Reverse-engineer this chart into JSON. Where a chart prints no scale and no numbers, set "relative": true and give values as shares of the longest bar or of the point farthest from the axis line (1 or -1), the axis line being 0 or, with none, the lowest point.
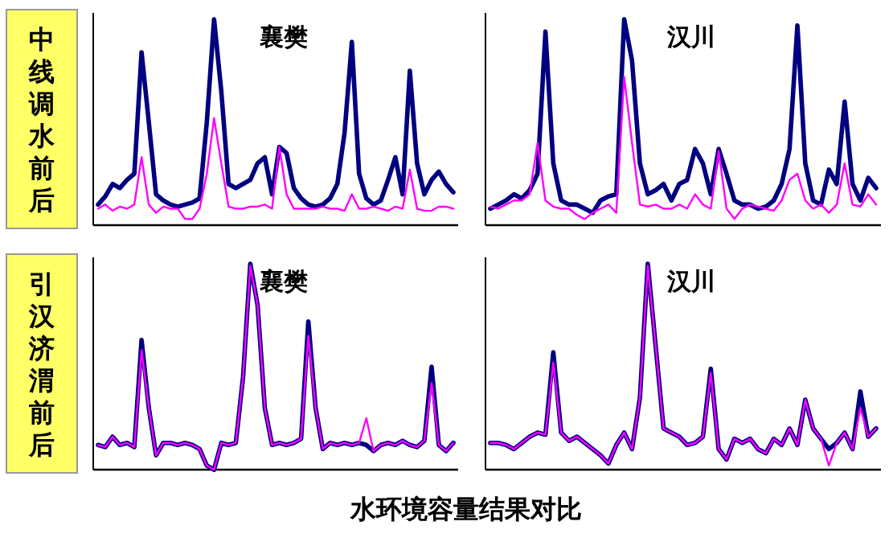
{
  "chart_data": [
    {
      "type": "line",
      "title": "襄樊",
      "relative": true,
      "legend": false,
      "grid": false,
      "annotations": [
        "中线调水前后"
      ],
      "categories": [
        null,
        null,
        null,
        null,
        null,
        null,
        null,
        null,
        null,
        null,
        null,
        null,
        null,
        null,
        null,
        null,
        null,
        null,
        null,
        null,
        null,
        null,
        null,
        null,
        null,
        null,
        null,
        null,
        null,
        null,
        null,
        null,
        null,
        null,
        null,
        null,
        null,
        null,
        null,
        null,
        null,
        null,
        null,
        null,
        null,
        null,
        null,
        null,
        null,
        null
      ],
      "series": [
        {
          "color": "#000080",
          "values": [
            0.1,
            0.14,
            0.2,
            0.18,
            0.22,
            0.25,
            0.84,
            0.5,
            0.15,
            0.12,
            0.1,
            0.09,
            0.1,
            0.11,
            0.13,
            0.5,
            1.0,
            0.65,
            0.2,
            0.18,
            0.2,
            0.22,
            0.3,
            0.33,
            0.15,
            0.38,
            0.35,
            0.18,
            0.13,
            0.1,
            0.09,
            0.1,
            0.13,
            0.2,
            0.45,
            0.89,
            0.25,
            0.13,
            0.1,
            0.12,
            0.22,
            0.33,
            0.15,
            0.75,
            0.3,
            0.15,
            0.22,
            0.26,
            0.2,
            0.16
          ]
        },
        {
          "color": "#ff00ff",
          "values": [
            0.08,
            0.1,
            0.07,
            0.09,
            0.08,
            0.1,
            0.33,
            0.1,
            0.06,
            0.09,
            0.08,
            0.08,
            0.03,
            0.03,
            0.08,
            0.25,
            0.52,
            0.3,
            0.09,
            0.08,
            0.08,
            0.09,
            0.09,
            0.1,
            0.08,
            0.38,
            0.15,
            0.08,
            0.08,
            0.08,
            0.08,
            0.09,
            0.08,
            0.08,
            0.07,
            0.15,
            0.08,
            0.08,
            0.09,
            0.08,
            0.07,
            0.09,
            0.08,
            0.27,
            0.08,
            0.07,
            0.07,
            0.09,
            0.09,
            0.08
          ]
        }
      ]
    },
    {
      "type": "line",
      "title": "汉川",
      "relative": true,
      "legend": false,
      "grid": false,
      "categories": [
        null,
        null,
        null,
        null,
        null,
        null,
        null,
        null,
        null,
        null,
        null,
        null,
        null,
        null,
        null,
        null,
        null,
        null,
        null,
        null,
        null,
        null,
        null,
        null,
        null,
        null,
        null,
        null,
        null,
        null,
        null,
        null,
        null,
        null,
        null,
        null,
        null,
        null,
        null,
        null,
        null,
        null,
        null,
        null,
        null,
        null,
        null,
        null,
        null,
        null
      ],
      "series": [
        {
          "color": "#000080",
          "values": [
            0.08,
            0.1,
            0.12,
            0.15,
            0.13,
            0.17,
            0.25,
            0.94,
            0.3,
            0.12,
            0.1,
            0.1,
            0.08,
            0.06,
            0.12,
            0.14,
            0.15,
            1.0,
            0.8,
            0.3,
            0.15,
            0.17,
            0.2,
            0.12,
            0.2,
            0.22,
            0.37,
            0.3,
            0.15,
            0.37,
            0.25,
            0.12,
            0.1,
            0.1,
            0.08,
            0.09,
            0.12,
            0.2,
            0.37,
            0.97,
            0.3,
            0.12,
            0.1,
            0.27,
            0.2,
            0.6,
            0.2,
            0.12,
            0.23,
            0.18
          ]
        },
        {
          "color": "#ff00ff",
          "values": [
            0.09,
            0.08,
            0.1,
            0.12,
            0.12,
            0.15,
            0.4,
            0.12,
            0.09,
            0.08,
            0.08,
            0.05,
            0.03,
            0.06,
            0.08,
            0.1,
            0.06,
            0.72,
            0.4,
            0.1,
            0.09,
            0.1,
            0.08,
            0.08,
            0.1,
            0.08,
            0.15,
            0.1,
            0.08,
            0.36,
            0.08,
            0.03,
            0.08,
            0.1,
            0.09,
            0.08,
            0.07,
            0.12,
            0.22,
            0.25,
            0.12,
            0.08,
            0.1,
            0.06,
            0.1,
            0.3,
            0.1,
            0.09,
            0.15,
            0.1
          ]
        }
      ]
    },
    {
      "type": "line",
      "title": "襄樊",
      "relative": true,
      "legend": false,
      "grid": false,
      "annotations": [
        "引汉济渭前后",
        "水环境容量结果对比"
      ],
      "categories": [
        null,
        null,
        null,
        null,
        null,
        null,
        null,
        null,
        null,
        null,
        null,
        null,
        null,
        null,
        null,
        null,
        null,
        null,
        null,
        null,
        null,
        null,
        null,
        null,
        null,
        null,
        null,
        null,
        null,
        null,
        null,
        null,
        null,
        null,
        null,
        null,
        null,
        null,
        null,
        null,
        null,
        null,
        null,
        null,
        null,
        null,
        null,
        null,
        null,
        null
      ],
      "series": [
        {
          "color": "#000080",
          "values": [
            0.12,
            0.11,
            0.16,
            0.12,
            0.13,
            0.11,
            0.63,
            0.3,
            0.07,
            0.13,
            0.13,
            0.12,
            0.13,
            0.12,
            0.1,
            0.02,
            0.0,
            0.13,
            0.12,
            0.13,
            0.45,
            1.0,
            0.8,
            0.3,
            0.12,
            0.13,
            0.12,
            0.13,
            0.15,
            0.72,
            0.3,
            0.1,
            0.13,
            0.12,
            0.13,
            0.12,
            0.13,
            0.12,
            0.09,
            0.12,
            0.13,
            0.12,
            0.14,
            0.12,
            0.11,
            0.14,
            0.5,
            0.12,
            0.09,
            0.13
          ]
        },
        {
          "color": "#ff00ff",
          "values": [
            0.12,
            0.11,
            0.16,
            0.12,
            0.13,
            0.11,
            0.58,
            0.3,
            0.07,
            0.13,
            0.13,
            0.12,
            0.13,
            0.12,
            0.1,
            0.02,
            0.0,
            0.13,
            0.12,
            0.13,
            0.45,
            0.99,
            0.8,
            0.3,
            0.12,
            0.13,
            0.12,
            0.13,
            0.15,
            0.65,
            0.3,
            0.1,
            0.13,
            0.12,
            0.13,
            0.12,
            0.13,
            0.25,
            0.09,
            0.12,
            0.13,
            0.12,
            0.14,
            0.12,
            0.11,
            0.14,
            0.42,
            0.12,
            0.09,
            0.13
          ]
        }
      ]
    },
    {
      "type": "line",
      "title": "汉川",
      "relative": true,
      "legend": false,
      "grid": false,
      "categories": [
        null,
        null,
        null,
        null,
        null,
        null,
        null,
        null,
        null,
        null,
        null,
        null,
        null,
        null,
        null,
        null,
        null,
        null,
        null,
        null,
        null,
        null,
        null,
        null,
        null,
        null,
        null,
        null,
        null,
        null,
        null,
        null,
        null,
        null,
        null,
        null,
        null,
        null,
        null,
        null,
        null,
        null,
        null,
        null,
        null,
        null,
        null,
        null,
        null,
        null
      ],
      "series": [
        {
          "color": "#000080",
          "values": [
            0.13,
            0.13,
            0.12,
            0.1,
            0.13,
            0.16,
            0.18,
            0.17,
            0.57,
            0.18,
            0.14,
            0.16,
            0.13,
            0.1,
            0.07,
            0.03,
            0.12,
            0.18,
            0.1,
            0.35,
            1.0,
            0.6,
            0.2,
            0.18,
            0.16,
            0.12,
            0.13,
            0.16,
            0.49,
            0.1,
            0.05,
            0.15,
            0.13,
            0.15,
            0.1,
            0.08,
            0.15,
            0.12,
            0.2,
            0.12,
            0.34,
            0.2,
            0.15,
            0.1,
            0.13,
            0.18,
            0.1,
            0.38,
            0.16,
            0.2
          ]
        },
        {
          "color": "#ff00ff",
          "values": [
            0.13,
            0.13,
            0.12,
            0.1,
            0.13,
            0.16,
            0.18,
            0.17,
            0.52,
            0.18,
            0.14,
            0.16,
            0.13,
            0.1,
            0.07,
            0.03,
            0.12,
            0.18,
            0.1,
            0.35,
            0.99,
            0.6,
            0.2,
            0.18,
            0.16,
            0.12,
            0.13,
            0.16,
            0.47,
            0.1,
            0.05,
            0.15,
            0.13,
            0.15,
            0.1,
            0.08,
            0.15,
            0.12,
            0.2,
            0.12,
            0.34,
            0.2,
            0.15,
            0.02,
            0.13,
            0.18,
            0.1,
            0.3,
            0.16,
            0.2
          ]
        }
      ]
    }
  ]
}
